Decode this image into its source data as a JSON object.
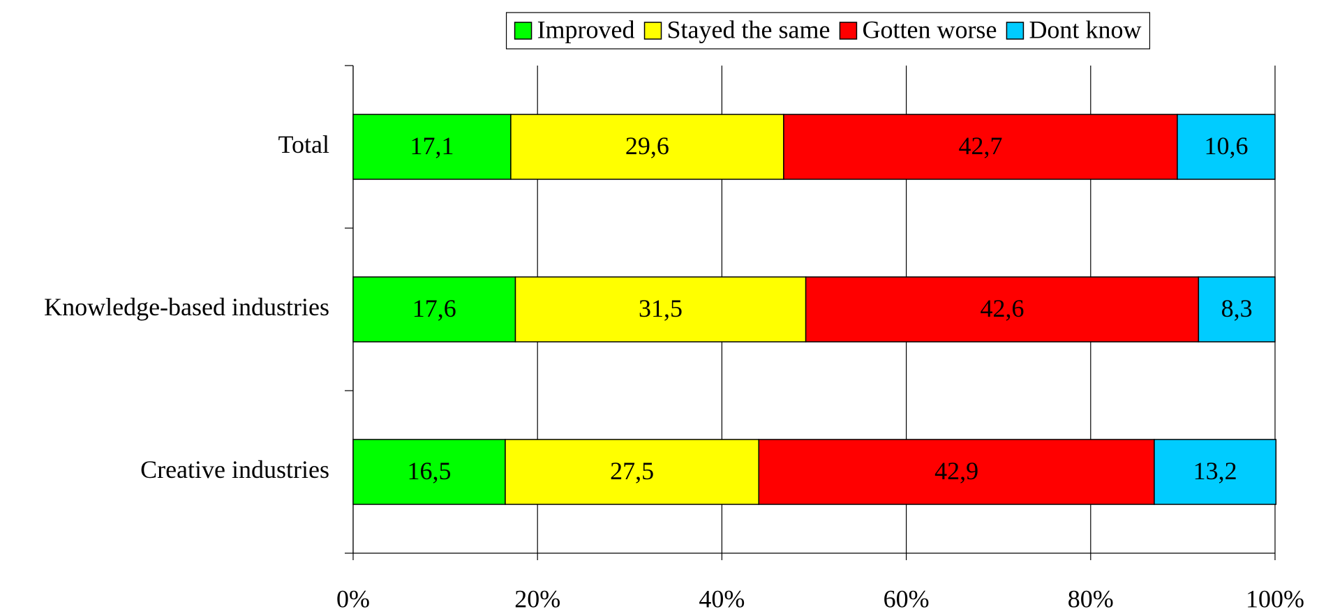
{
  "chart_data": {
    "type": "stacked_barh",
    "categories": [
      "Total",
      "Knowledge-based industries",
      "Creative industries"
    ],
    "series": [
      {
        "name": "Improved",
        "color": "#00ff00",
        "values": [
          17.1,
          17.6,
          16.5
        ],
        "value_labels": [
          "17,1",
          "17,6",
          "16,5"
        ]
      },
      {
        "name": "Stayed the same",
        "color": "#ffff00",
        "values": [
          29.6,
          31.5,
          27.5
        ],
        "value_labels": [
          "29,6",
          "31,5",
          "27,5"
        ]
      },
      {
        "name": "Gotten worse",
        "color": "#ff0000",
        "values": [
          42.7,
          42.6,
          42.9
        ],
        "value_labels": [
          "42,7",
          "42,6",
          "42,9"
        ]
      },
      {
        "name": "Dont know",
        "color": "#00ccff",
        "values": [
          10.6,
          8.3,
          13.2
        ],
        "value_labels": [
          "10,6",
          "8,3",
          "13,2"
        ]
      }
    ],
    "xlim": [
      0,
      100
    ],
    "xticks": [
      {
        "value": 0,
        "label": "0%"
      },
      {
        "value": 20,
        "label": "20%"
      },
      {
        "value": 40,
        "label": "40%"
      },
      {
        "value": 60,
        "label": "60%"
      },
      {
        "value": 80,
        "label": "80%"
      },
      {
        "value": 100,
        "label": "100%"
      }
    ],
    "grid": true,
    "legend": "top"
  }
}
